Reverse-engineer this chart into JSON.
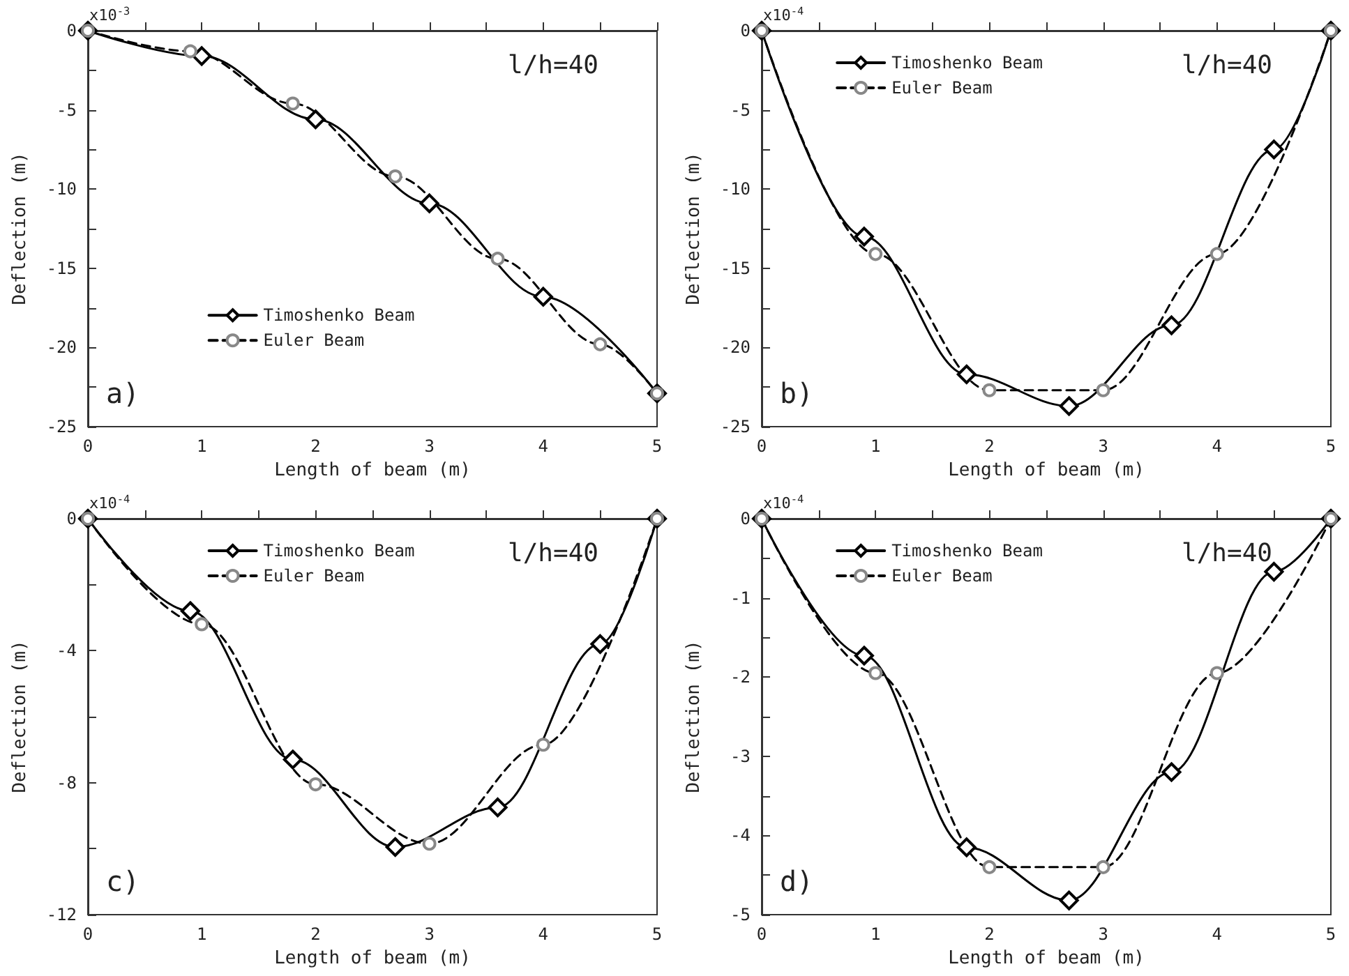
{
  "chart_data": [
    {
      "type": "line",
      "xlabel": "Length of beam (m)",
      "ylabel": "Deflection (m)",
      "annotations": [
        "x10$^{-3}$",
        "l/h=40",
        "a)"
      ],
      "xlim": [
        0,
        5
      ],
      "ylim": [
        -25,
        0
      ],
      "xticks": [
        0,
        {
          "value": 0.5,
          "label": null
        },
        1,
        {
          "value": 1.5,
          "label": null
        },
        2,
        {
          "value": 2.5,
          "label": null
        },
        3,
        {
          "value": 3.5,
          "label": null
        },
        4,
        {
          "value": 4.5,
          "label": null
        },
        5
      ],
      "yticks": [
        -25,
        {
          "value": -22.5,
          "label": null
        },
        -20,
        {
          "value": -17.5,
          "label": null
        },
        -15,
        {
          "value": -12.5,
          "label": null
        },
        -10,
        {
          "value": -7.5,
          "label": null
        },
        -5,
        {
          "value": -2.5,
          "label": null
        },
        0
      ],
      "grid": false,
      "legend": "bottom",
      "series": [
        {
          "name": "Timoshenko Beam",
          "color": "#000000",
          "marker": "diamond",
          "line_style": "solid",
          "x": [
            0,
            1,
            2,
            3,
            4,
            5
          ],
          "values": [
            0,
            -1.6,
            -5.6,
            -10.9,
            -16.8,
            -22.9
          ]
        },
        {
          "name": "Euler Beam",
          "color": "#000000",
          "marker": "circle",
          "line_style": "dashed",
          "x": [
            0,
            0.9,
            1.8,
            2.7,
            3.6,
            4.5,
            5
          ],
          "values": [
            0,
            -1.3,
            -4.6,
            -9.2,
            -14.4,
            -19.8,
            -22.9
          ]
        }
      ]
    },
    {
      "type": "line",
      "xlabel": "Length of beam (m)",
      "ylabel": "Deflection (m)",
      "annotations": [
        "x10$^{-4}$",
        "l/h=40",
        "b)"
      ],
      "xlim": [
        0,
        5
      ],
      "ylim": [
        -25,
        0
      ],
      "xticks": [
        0,
        {
          "value": 0.5,
          "label": null
        },
        1,
        {
          "value": 1.5,
          "label": null
        },
        2,
        {
          "value": 2.5,
          "label": null
        },
        3,
        {
          "value": 3.5,
          "label": null
        },
        4,
        {
          "value": 4.5,
          "label": null
        },
        5
      ],
      "yticks": [
        -25,
        {
          "value": -22.5,
          "label": null
        },
        -20,
        {
          "value": -17.5,
          "label": null
        },
        -15,
        {
          "value": -12.5,
          "label": null
        },
        -10,
        {
          "value": -7.5,
          "label": null
        },
        -5,
        {
          "value": -2.5,
          "label": null
        },
        0
      ],
      "grid": false,
      "legend": "top left",
      "series": [
        {
          "name": "Timoshenko Beam",
          "color": "#000000",
          "marker": "diamond",
          "line_style": "solid",
          "x": [
            0,
            0.9,
            1.8,
            2.7,
            3.6,
            4.5,
            5
          ],
          "values": [
            0,
            -13,
            -21.7,
            -23.7,
            -18.6,
            -7.5,
            0
          ]
        },
        {
          "name": "Euler Beam",
          "color": "#000000",
          "marker": "circle",
          "line_style": "dashed",
          "x": [
            0,
            1,
            2,
            3,
            4,
            5
          ],
          "values": [
            0,
            -14.1,
            -22.7,
            -22.7,
            -14.1,
            0
          ]
        }
      ]
    },
    {
      "type": "line",
      "xlabel": "Length of beam (m)",
      "ylabel": "Deflection (m)",
      "annotations": [
        "x10$^{-4}$",
        "l/h=40",
        "c)"
      ],
      "xlim": [
        0,
        5
      ],
      "ylim": [
        -12,
        0
      ],
      "xticks": [
        0,
        {
          "value": 0.5,
          "label": null
        },
        1,
        {
          "value": 1.5,
          "label": null
        },
        2,
        {
          "value": 2.5,
          "label": null
        },
        3,
        {
          "value": 3.5,
          "label": null
        },
        4,
        {
          "value": 4.5,
          "label": null
        },
        5
      ],
      "yticks": [
        -12,
        {
          "value": -10,
          "label": null
        },
        -8,
        {
          "value": -6,
          "label": null
        },
        -4,
        {
          "value": -2,
          "label": null
        },
        0
      ],
      "grid": false,
      "legend": "top",
      "series": [
        {
          "name": "Timoshenko Beam",
          "color": "#000000",
          "marker": "diamond",
          "line_style": "solid",
          "x": [
            0,
            0.9,
            1.8,
            2.7,
            3.6,
            4.5,
            5
          ],
          "values": [
            0,
            -2.8,
            -7.3,
            -9.95,
            -8.75,
            -3.8,
            0
          ]
        },
        {
          "name": "Euler Beam",
          "color": "#000000",
          "marker": "circle",
          "line_style": "dashed",
          "x": [
            0,
            1,
            2,
            3,
            4,
            5
          ],
          "values": [
            0,
            -3.2,
            -8.05,
            -9.85,
            -6.85,
            0
          ]
        }
      ]
    },
    {
      "type": "line",
      "xlabel": "Length of beam (m)",
      "ylabel": "Deflection (m)",
      "annotations": [
        "x10$^{-4}$",
        "l/h=40",
        "d)"
      ],
      "xlim": [
        0,
        5
      ],
      "ylim": [
        -5,
        0
      ],
      "xticks": [
        0,
        {
          "value": 0.5,
          "label": null
        },
        1,
        {
          "value": 1.5,
          "label": null
        },
        2,
        {
          "value": 2.5,
          "label": null
        },
        3,
        {
          "value": 3.5,
          "label": null
        },
        4,
        {
          "value": 4.5,
          "label": null
        },
        5
      ],
      "yticks": [
        -5,
        {
          "value": -4.5,
          "label": null
        },
        -4,
        {
          "value": -3.5,
          "label": null
        },
        -3,
        {
          "value": -2.5,
          "label": null
        },
        -2,
        {
          "value": -1.5,
          "label": null
        },
        -1,
        {
          "value": -0.5,
          "label": null
        },
        0
      ],
      "grid": false,
      "legend": "top left",
      "series": [
        {
          "name": "Timoshenko Beam",
          "color": "#000000",
          "marker": "diamond",
          "line_style": "solid",
          "x": [
            0,
            0.9,
            1.8,
            2.7,
            3.6,
            4.5,
            5
          ],
          "values": [
            0,
            -1.73,
            -4.15,
            -4.82,
            -3.2,
            -0.67,
            0
          ]
        },
        {
          "name": "Euler Beam",
          "color": "#000000",
          "marker": "circle",
          "line_style": "dashed",
          "x": [
            0,
            1,
            2,
            3,
            4,
            5
          ],
          "values": [
            0,
            -1.95,
            -4.4,
            -4.4,
            -1.95,
            0
          ]
        }
      ]
    }
  ]
}
